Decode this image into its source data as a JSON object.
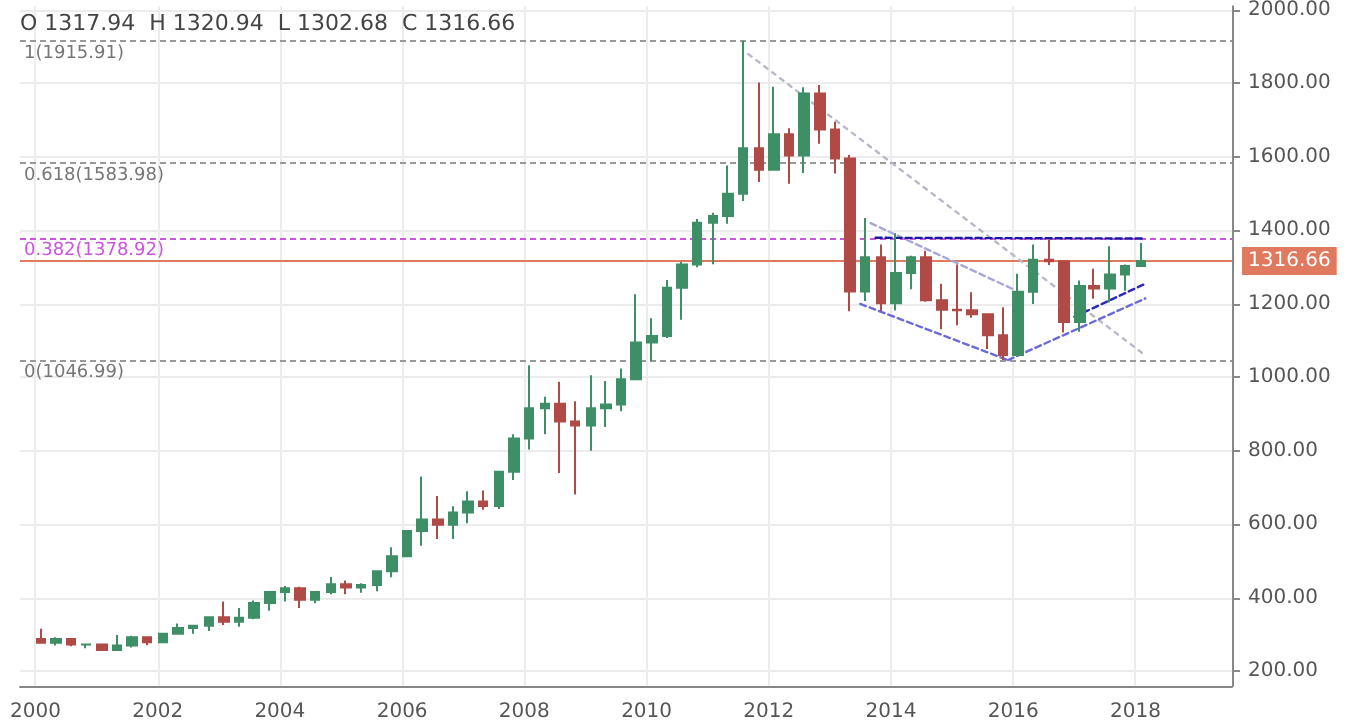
{
  "chart_data": {
    "type": "candlestick",
    "x": [
      "2000-02",
      "2000-05",
      "2000-08",
      "2000-11",
      "2001-02",
      "2001-05",
      "2001-08",
      "2001-11",
      "2002-02",
      "2002-05",
      "2002-08",
      "2002-11",
      "2003-02",
      "2003-05",
      "2003-08",
      "2003-11",
      "2004-02",
      "2004-05",
      "2004-08",
      "2004-11",
      "2005-02",
      "2005-05",
      "2005-08",
      "2005-11",
      "2006-02",
      "2006-05",
      "2006-08",
      "2006-11",
      "2007-02",
      "2007-05",
      "2007-08",
      "2007-11",
      "2008-02",
      "2008-05",
      "2008-08",
      "2008-11",
      "2009-02",
      "2009-05",
      "2009-08",
      "2009-11",
      "2010-02",
      "2010-05",
      "2010-08",
      "2010-11",
      "2011-02",
      "2011-05",
      "2011-08",
      "2011-11",
      "2012-02",
      "2012-05",
      "2012-08",
      "2012-11",
      "2013-02",
      "2013-05",
      "2013-08",
      "2013-11",
      "2014-02",
      "2014-05",
      "2014-08",
      "2014-11",
      "2015-02",
      "2015-05",
      "2015-08",
      "2015-11",
      "2016-02",
      "2016-05",
      "2016-08",
      "2016-11",
      "2017-02",
      "2017-05",
      "2017-08",
      "2017-11",
      "2018-02"
    ],
    "ohlc": [
      [
        288,
        316,
        278,
        278
      ],
      [
        278,
        293,
        270,
        288
      ],
      [
        288,
        290,
        268,
        273
      ],
      [
        273,
        276,
        263,
        273
      ],
      [
        273,
        273,
        255,
        258
      ],
      [
        258,
        299,
        256,
        270
      ],
      [
        270,
        297,
        265,
        293
      ],
      [
        293,
        293,
        271,
        279
      ],
      [
        279,
        305,
        277,
        302
      ],
      [
        302,
        330,
        300,
        318
      ],
      [
        318,
        327,
        302,
        324
      ],
      [
        324,
        350,
        310,
        347
      ],
      [
        347,
        390,
        326,
        335
      ],
      [
        335,
        372,
        321,
        346
      ],
      [
        346,
        393,
        342,
        386
      ],
      [
        386,
        418,
        365,
        416
      ],
      [
        416,
        432,
        390,
        426
      ],
      [
        426,
        430,
        372,
        395
      ],
      [
        395,
        418,
        385,
        416
      ],
      [
        416,
        457,
        410,
        437
      ],
      [
        437,
        447,
        410,
        428
      ],
      [
        428,
        440,
        414,
        435
      ],
      [
        435,
        474,
        418,
        472
      ],
      [
        472,
        538,
        456,
        513
      ],
      [
        513,
        584,
        512,
        582
      ],
      [
        582,
        730,
        542,
        613
      ],
      [
        613,
        677,
        560,
        599
      ],
      [
        599,
        649,
        560,
        632
      ],
      [
        632,
        690,
        603,
        662
      ],
      [
        662,
        692,
        640,
        650
      ],
      [
        650,
        745,
        642,
        743
      ],
      [
        743,
        845,
        721,
        834
      ],
      [
        834,
        1033,
        804,
        916
      ],
      [
        916,
        947,
        845,
        928
      ],
      [
        928,
        988,
        740,
        880
      ],
      [
        880,
        935,
        681,
        869
      ],
      [
        869,
        1006,
        800,
        916
      ],
      [
        916,
        990,
        865,
        926
      ],
      [
        926,
        1024,
        908,
        995
      ],
      [
        995,
        1226,
        993,
        1095
      ],
      [
        1095,
        1161,
        1044,
        1113
      ],
      [
        1113,
        1265,
        1107,
        1244
      ],
      [
        1244,
        1315,
        1157,
        1307
      ],
      [
        1307,
        1431,
        1300,
        1421
      ],
      [
        1421,
        1448,
        1308,
        1439
      ],
      [
        1439,
        1577,
        1418,
        1500
      ],
      [
        1500,
        1916,
        1480,
        1624
      ],
      [
        1624,
        1803,
        1532,
        1565
      ],
      [
        1565,
        1791,
        1563,
        1662
      ],
      [
        1662,
        1678,
        1527,
        1604
      ],
      [
        1604,
        1790,
        1556,
        1773
      ],
      [
        1773,
        1796,
        1636,
        1675
      ],
      [
        1675,
        1696,
        1555,
        1596
      ],
      [
        1596,
        1605,
        1180,
        1234
      ],
      [
        1234,
        1434,
        1208,
        1327
      ],
      [
        1327,
        1362,
        1181,
        1202
      ],
      [
        1202,
        1392,
        1182,
        1284
      ],
      [
        1284,
        1331,
        1240,
        1327
      ],
      [
        1327,
        1345,
        1206,
        1210
      ],
      [
        1210,
        1255,
        1131,
        1184
      ],
      [
        1184,
        1307,
        1142,
        1183
      ],
      [
        1183,
        1232,
        1162,
        1172
      ],
      [
        1172,
        1174,
        1077,
        1115
      ],
      [
        1115,
        1191,
        1047,
        1061
      ],
      [
        1061,
        1282,
        1058,
        1233
      ],
      [
        1233,
        1362,
        1200,
        1320
      ],
      [
        1320,
        1375,
        1306,
        1316
      ],
      [
        1316,
        1318,
        1122,
        1151
      ],
      [
        1151,
        1264,
        1124,
        1249
      ],
      [
        1249,
        1296,
        1214,
        1242
      ],
      [
        1242,
        1357,
        1204,
        1280
      ],
      [
        1280,
        1307,
        1236,
        1303
      ],
      [
        1303,
        1366,
        1302,
        1317
      ]
    ],
    "colors": [
      "#b04a47",
      "#3f8f66",
      "#b04a47",
      "#3f8f66",
      "#b04a47",
      "#3f8f66",
      "#3f8f66",
      "#b04a47",
      "#3f8f66",
      "#3f8f66",
      "#3f8f66",
      "#3f8f66",
      "#b04a47",
      "#3f8f66",
      "#3f8f66",
      "#3f8f66",
      "#3f8f66",
      "#b04a47",
      "#3f8f66",
      "#3f8f66",
      "#b04a47",
      "#3f8f66",
      "#3f8f66",
      "#3f8f66",
      "#3f8f66",
      "#3f8f66",
      "#b04a47",
      "#3f8f66",
      "#3f8f66",
      "#b04a47",
      "#3f8f66",
      "#3f8f66",
      "#3f8f66",
      "#3f8f66",
      "#b04a47",
      "#b04a47",
      "#3f8f66",
      "#3f8f66",
      "#3f8f66",
      "#3f8f66",
      "#3f8f66",
      "#3f8f66",
      "#3f8f66",
      "#3f8f66",
      "#3f8f66",
      "#3f8f66",
      "#3f8f66",
      "#b04a47",
      "#3f8f66",
      "#b04a47",
      "#3f8f66",
      "#b04a47",
      "#b04a47",
      "#b04a47",
      "#3f8f66",
      "#b04a47",
      "#3f8f66",
      "#3f8f66",
      "#b04a47",
      "#b04a47",
      "#b04a47",
      "#b04a47",
      "#b04a47",
      "#b04a47",
      "#3f8f66",
      "#3f8f66",
      "#b04a47",
      "#b04a47",
      "#3f8f66",
      "#b04a47",
      "#3f8f66",
      "#3f8f66",
      "#3f8f66"
    ],
    "series": [
      {
        "type": "line",
        "x": [
          "2011-09",
          "2018-03"
        ],
        "values": [
          1880,
          1060
        ],
        "color": "#b8b8c8",
        "line_style": "dotted"
      },
      {
        "type": "line",
        "x": [
          "2013-09",
          "2016-01"
        ],
        "values": [
          1420,
          1240
        ],
        "color": "#a8a8d8",
        "line_style": "dashed"
      },
      {
        "type": "line",
        "x": [
          "2013-07",
          "2015-12"
        ],
        "values": [
          1200,
          1047
        ],
        "color": "#6a6ad8",
        "line_style": "dashed"
      },
      {
        "type": "line",
        "x": [
          "2013-10",
          "2018-03"
        ],
        "values": [
          1380,
          1378
        ],
        "color": "#1a1aa0",
        "line_style": "dashed"
      },
      {
        "type": "line",
        "x": [
          "2015-12",
          "2018-03"
        ],
        "values": [
          1047,
          1215
        ],
        "color": "#6a6ad8",
        "line_style": "dashed"
      },
      {
        "type": "line",
        "x": [
          "2017-01",
          "2018-03"
        ],
        "values": [
          1165,
          1255
        ],
        "color": "#2a2ab8",
        "line_style": "dashed"
      }
    ],
    "ref_lines": [
      {
        "axis": "y",
        "value": 1915.91,
        "label": "1(1915.91)",
        "color": "#999999",
        "line_style": "dashed"
      },
      {
        "axis": "y",
        "value": 1583.98,
        "label": "0.618(1583.98)",
        "color": "#999999",
        "line_style": "dashed"
      },
      {
        "axis": "y",
        "value": 1378.92,
        "label": "0.382(1378.92)",
        "color": "#cc55dd",
        "line_style": "dashed"
      },
      {
        "axis": "y",
        "value": 1046.99,
        "label": "0(1046.99)",
        "color": "#999999",
        "line_style": "dashed"
      },
      {
        "axis": "y",
        "value": 1316.66,
        "label": "1316.66",
        "color": "#e07a5f",
        "line_style": "solid"
      }
    ],
    "annotations": [
      "O 1317.94  H 1320.94  L 1302.68  C 1316.66"
    ],
    "xlim": [
      "1999-10",
      "2019-08"
    ],
    "xticks": [
      "2000",
      "2002",
      "2004",
      "2006",
      "2008",
      "2010",
      "2012",
      "2014",
      "2016",
      "2018"
    ],
    "ylim": [
      160,
      2010
    ],
    "yticks": [
      {
        "value": 200,
        "label": "200.00"
      },
      {
        "value": 400,
        "label": "400.00"
      },
      {
        "value": 600,
        "label": "600.00"
      },
      {
        "value": 800,
        "label": "800.00"
      },
      {
        "value": 1000,
        "label": "1000.00"
      },
      {
        "value": 1200,
        "label": "1200.00"
      },
      {
        "value": 1400,
        "label": "1400.00"
      },
      {
        "value": 1600,
        "label": "1600.00"
      },
      {
        "value": 1800,
        "label": "1800.00"
      },
      {
        "value": 2000,
        "label": "2000.00"
      }
    ],
    "grid": true
  }
}
